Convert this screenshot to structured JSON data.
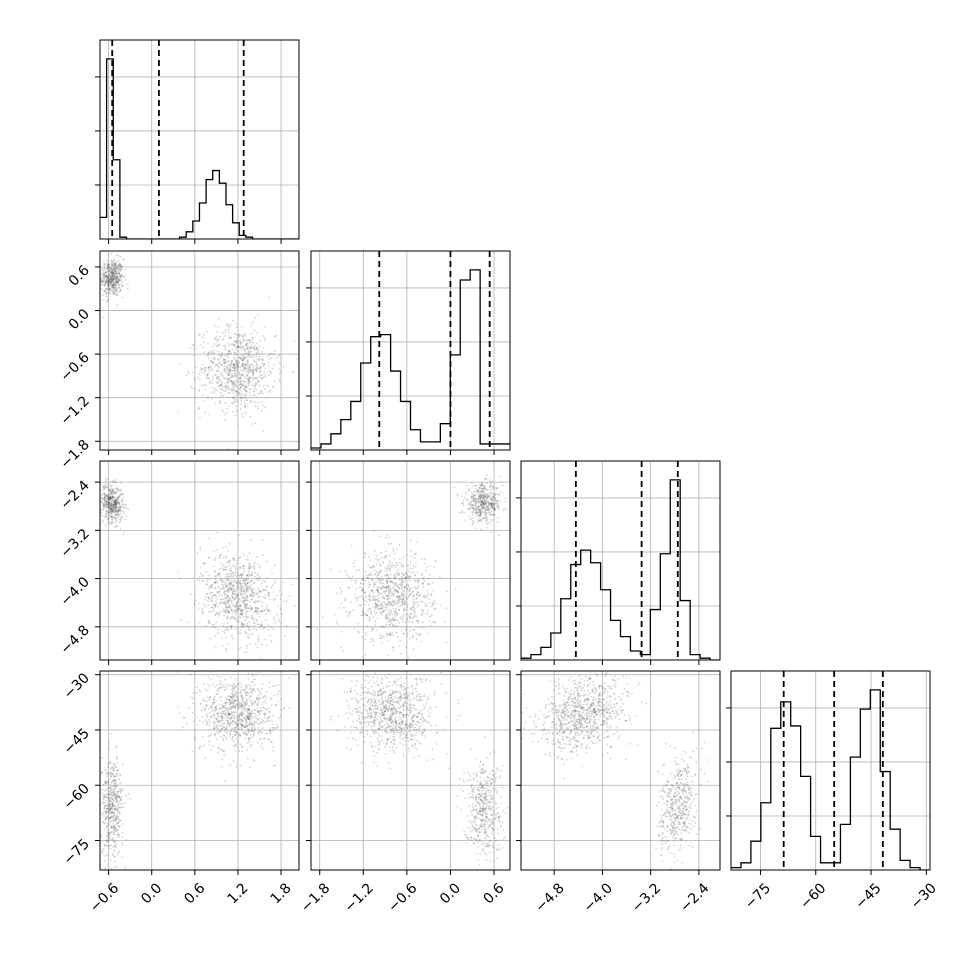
{
  "chart_data": {
    "type": "corner",
    "grid": true,
    "variables": [
      {
        "ticks": [
          -0.6,
          0.0,
          0.6,
          1.2,
          1.8
        ],
        "tick_labels": [
          "−0.6",
          "0.0",
          "0.6",
          "1.2",
          "1.8"
        ],
        "range": [
          -0.72,
          2.05
        ],
        "quantiles": [
          -0.55,
          0.1,
          1.28
        ]
      },
      {
        "ticks": [
          -1.8,
          -1.2,
          -0.6,
          0.0,
          0.6
        ],
        "tick_labels": [
          "−1.8",
          "−1.2",
          "−0.6",
          "0.0",
          "0.6"
        ],
        "range": [
          -1.92,
          0.82
        ],
        "quantiles": [
          -0.98,
          0.0,
          0.54
        ]
      },
      {
        "ticks": [
          -4.8,
          -4.0,
          -3.2,
          -2.4
        ],
        "tick_labels": [
          "−4.8",
          "−4.0",
          "−3.2",
          "−2.4"
        ],
        "range": [
          -5.35,
          -2.05
        ],
        "quantiles": [
          -4.44,
          -3.35,
          -2.75
        ]
      },
      {
        "ticks": [
          -75,
          -60,
          -45,
          -30
        ],
        "tick_labels": [
          "−75",
          "−60",
          "−45",
          "−30"
        ],
        "range": [
          -83,
          -29
        ],
        "quantiles": [
          -68.7,
          -55.0,
          -41.8
        ]
      }
    ],
    "histograms": [
      {
        "edges_start": -0.72,
        "bin_width": 0.0923,
        "counts": [
          0.12,
          1.0,
          0.44,
          0.01,
          0,
          0,
          0,
          0,
          0,
          0,
          0,
          0,
          0.01,
          0.04,
          0.1,
          0.2,
          0.33,
          0.38,
          0.31,
          0.19,
          0.09,
          0.02,
          0.01,
          0,
          0,
          0,
          0,
          0,
          0,
          0
        ]
      },
      {
        "edges_start": -1.92,
        "bin_width": 0.137,
        "counts": [
          0.01,
          0.03,
          0.08,
          0.15,
          0.24,
          0.43,
          0.56,
          0.57,
          0.39,
          0.24,
          0.1,
          0.04,
          0.04,
          0.13,
          0.47,
          0.84,
          0.89,
          0.03,
          0.03,
          0.03
        ]
      },
      {
        "edges_start": -5.35,
        "bin_width": 0.165,
        "counts": [
          0.01,
          0.03,
          0.07,
          0.15,
          0.34,
          0.53,
          0.61,
          0.54,
          0.39,
          0.22,
          0.13,
          0.05,
          0.03,
          0.28,
          0.59,
          1.0,
          0.33,
          0.03,
          0.01,
          0.0
        ]
      },
      {
        "edges_start": -83.0,
        "bin_width": 2.7,
        "counts": [
          0.01,
          0.03,
          0.12,
          0.28,
          0.59,
          0.7,
          0.6,
          0.39,
          0.14,
          0.03,
          0.03,
          0.19,
          0.47,
          0.67,
          0.75,
          0.41,
          0.17,
          0.04,
          0.01,
          0.0
        ]
      }
    ],
    "mixture_components": [
      {
        "weight": 0.35,
        "mean": [
          -0.55,
          0.45,
          -2.75,
          -66.0
        ],
        "sd": [
          0.06,
          0.1,
          0.12,
          5.0
        ]
      },
      {
        "weight": 0.65,
        "mean": [
          1.2,
          -0.8,
          -4.3,
          -40.5
        ],
        "sd": [
          0.2,
          0.22,
          0.28,
          4.0
        ]
      }
    ],
    "pair_correlations": {
      "0-1": 0.0,
      "0-2": -0.2,
      "1-2": 0.0,
      "0-3": 0.0,
      "1-3": 0.0,
      "2-3": 0.3
    }
  }
}
